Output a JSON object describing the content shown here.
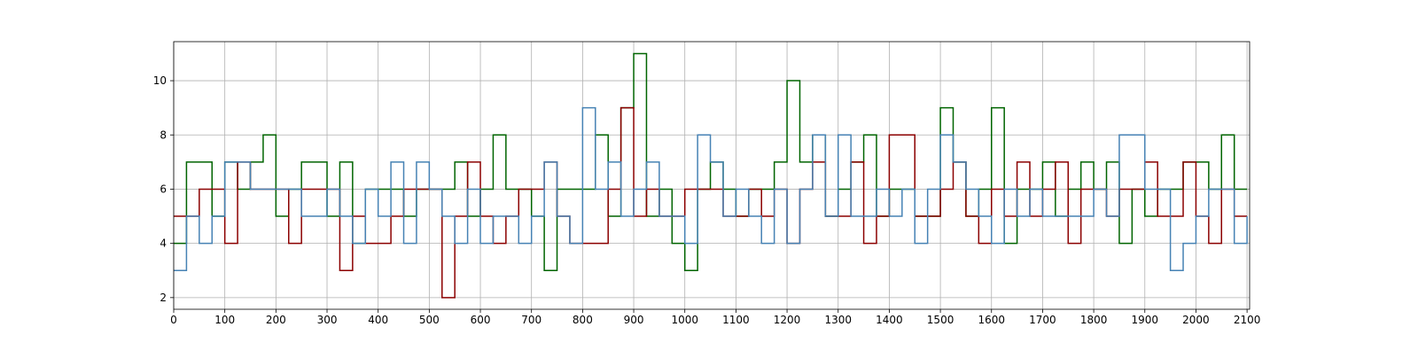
{
  "chart_data": {
    "type": "line",
    "drawstyle": "steps-post",
    "grid": true,
    "x": [
      0,
      25,
      50,
      75,
      100,
      125,
      150,
      175,
      200,
      225,
      250,
      275,
      300,
      325,
      350,
      375,
      400,
      425,
      450,
      475,
      500,
      525,
      550,
      575,
      600,
      625,
      650,
      675,
      700,
      725,
      750,
      775,
      800,
      825,
      850,
      875,
      900,
      925,
      950,
      975,
      1000,
      1025,
      1050,
      1075,
      1100,
      1125,
      1150,
      1175,
      1200,
      1225,
      1250,
      1275,
      1300,
      1325,
      1350,
      1375,
      1400,
      1425,
      1450,
      1475,
      1500,
      1525,
      1550,
      1575,
      1600,
      1625,
      1650,
      1675,
      1700,
      1725,
      1750,
      1775,
      1800,
      1825,
      1850,
      1875,
      1900,
      1925,
      1950,
      1975,
      2000,
      2025,
      2050,
      2075,
      2100
    ],
    "series": [
      {
        "color": "#006400",
        "values": [
          4,
          7,
          7,
          5,
          7,
          6,
          7,
          8,
          5,
          6,
          7,
          7,
          5,
          7,
          4,
          6,
          6,
          6,
          5,
          6,
          6,
          6,
          7,
          5,
          6,
          8,
          6,
          6,
          5,
          3,
          6,
          6,
          6,
          8,
          5,
          9,
          11,
          5,
          6,
          4,
          3,
          6,
          7,
          6,
          5,
          6,
          6,
          7,
          10,
          7,
          8,
          5,
          6,
          7,
          8,
          5,
          6,
          6,
          5,
          5,
          9,
          7,
          5,
          6,
          9,
          4,
          6,
          6,
          7,
          5,
          6,
          7,
          6,
          7,
          4,
          6,
          5,
          6,
          6,
          7,
          7,
          6,
          8,
          6,
          6
        ]
      },
      {
        "color": "#8b0000",
        "values": [
          5,
          5,
          6,
          6,
          4,
          7,
          6,
          6,
          6,
          4,
          6,
          6,
          6,
          3,
          5,
          4,
          4,
          5,
          6,
          6,
          6,
          2,
          5,
          7,
          5,
          4,
          5,
          6,
          6,
          7,
          5,
          4,
          4,
          4,
          6,
          9,
          5,
          6,
          5,
          5,
          6,
          6,
          6,
          5,
          5,
          6,
          5,
          6,
          4,
          6,
          7,
          5,
          5,
          7,
          4,
          5,
          8,
          8,
          5,
          5,
          6,
          7,
          5,
          4,
          6,
          5,
          7,
          5,
          6,
          7,
          4,
          6,
          6,
          5,
          6,
          6,
          7,
          5,
          5,
          7,
          5,
          4,
          6,
          5,
          5
        ]
      },
      {
        "color": "#4682b4",
        "values": [
          3,
          5,
          4,
          5,
          7,
          7,
          6,
          6,
          6,
          6,
          5,
          5,
          6,
          5,
          4,
          6,
          5,
          7,
          4,
          7,
          6,
          5,
          4,
          6,
          4,
          5,
          5,
          4,
          5,
          7,
          5,
          4,
          9,
          6,
          7,
          5,
          6,
          7,
          5,
          5,
          4,
          8,
          7,
          5,
          6,
          5,
          4,
          6,
          4,
          6,
          8,
          5,
          8,
          5,
          5,
          6,
          5,
          6,
          4,
          6,
          8,
          7,
          6,
          5,
          4,
          6,
          5,
          6,
          5,
          5,
          5,
          5,
          6,
          5,
          8,
          8,
          6,
          6,
          3,
          4,
          5,
          6,
          6,
          4,
          5
        ]
      }
    ],
    "xlim": [
      0,
      2105
    ],
    "xticks": [
      0,
      100,
      200,
      300,
      400,
      500,
      600,
      700,
      800,
      900,
      1000,
      1100,
      1200,
      1300,
      1400,
      1500,
      1600,
      1700,
      1800,
      1900,
      2000,
      2100
    ],
    "ylim": [
      1.57,
      11.44
    ],
    "yticks": [
      2,
      4,
      6,
      8,
      10
    ]
  }
}
